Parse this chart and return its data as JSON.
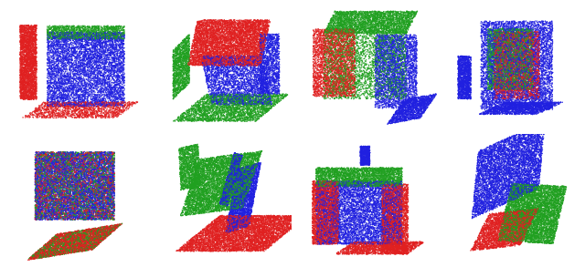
{
  "figure_width": 6.4,
  "figure_height": 2.93,
  "dpi": 100,
  "background_color": "#ffffff",
  "grid_rows": 2,
  "grid_cols": 4,
  "colors": [
    "#e02020",
    "#2020e0",
    "#20a020"
  ],
  "point_size": 1.2,
  "alpha": 0.85
}
